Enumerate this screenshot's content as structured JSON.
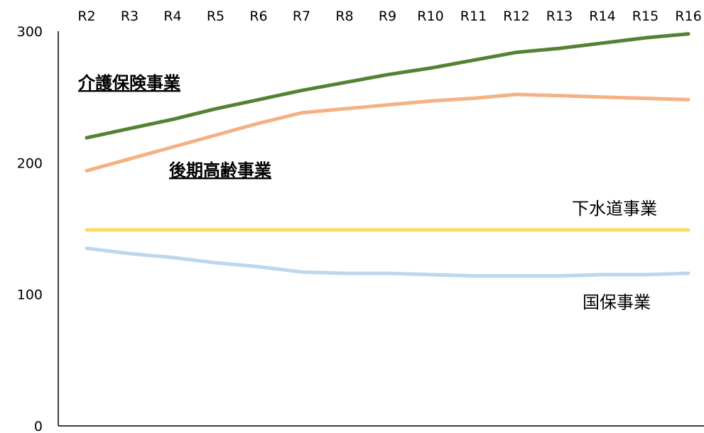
{
  "chart_data": {
    "type": "line",
    "categories": [
      "R2",
      "R3",
      "R4",
      "R5",
      "R6",
      "R7",
      "R8",
      "R9",
      "R10",
      "R11",
      "R12",
      "R13",
      "R14",
      "R15",
      "R16"
    ],
    "ylim": [
      0,
      300
    ],
    "yticks": [
      0,
      100,
      200,
      300
    ],
    "grid": false,
    "legend": "none",
    "series": [
      {
        "name": "介護保険事業",
        "color": "#548235",
        "values": [
          219,
          226,
          233,
          241,
          248,
          255,
          261,
          267,
          272,
          278,
          284,
          287,
          291,
          295,
          298
        ]
      },
      {
        "name": "後期高齢事業",
        "color": "#F4B183",
        "values": [
          194,
          203,
          212,
          221,
          230,
          238,
          241,
          244,
          247,
          249,
          252,
          251,
          250,
          249,
          248
        ]
      },
      {
        "name": "下水道事業",
        "color": "#FFD966",
        "values": [
          149,
          149,
          149,
          149,
          149,
          149,
          149,
          149,
          149,
          149,
          149,
          149,
          149,
          149,
          149
        ]
      },
      {
        "name": "国保事業",
        "color": "#BDD7EE",
        "values": [
          135,
          131,
          128,
          124,
          121,
          117,
          116,
          116,
          115,
          114,
          114,
          114,
          115,
          115,
          116
        ]
      }
    ],
    "annotations": [
      "介護保険事業",
      "後期高齢事業",
      "下水道事業",
      "国保事業"
    ]
  }
}
